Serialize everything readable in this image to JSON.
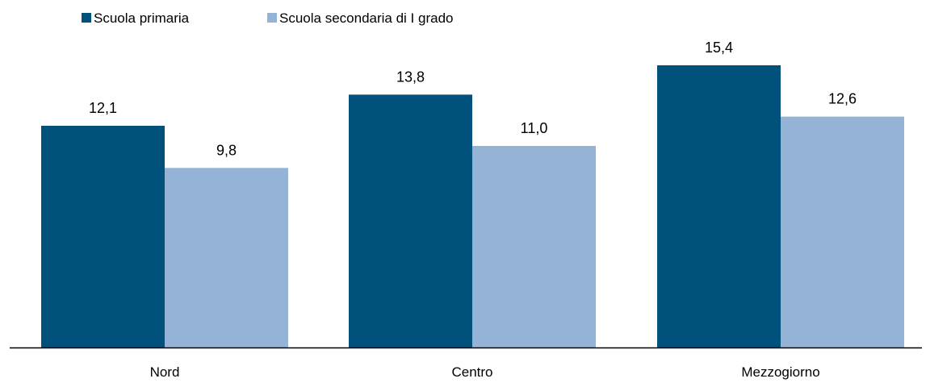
{
  "chart_data": {
    "type": "bar",
    "categories": [
      "Nord",
      "Centro",
      "Mezzogiorno"
    ],
    "series": [
      {
        "name": "Scuola primaria",
        "values": [
          12.1,
          13.8,
          15.4
        ],
        "labels": [
          "12,1",
          "13,8",
          "15,4"
        ],
        "color": "#00527d"
      },
      {
        "name": "Scuola secondaria di I grado",
        "values": [
          9.8,
          11.0,
          12.6
        ],
        "labels": [
          "9,8",
          "11,0",
          "12,6"
        ],
        "color": "#95b3d7"
      }
    ],
    "ylim": [
      0,
      15.4
    ],
    "legend_position": "top-left",
    "grid": false,
    "axis_color": "#000000"
  }
}
